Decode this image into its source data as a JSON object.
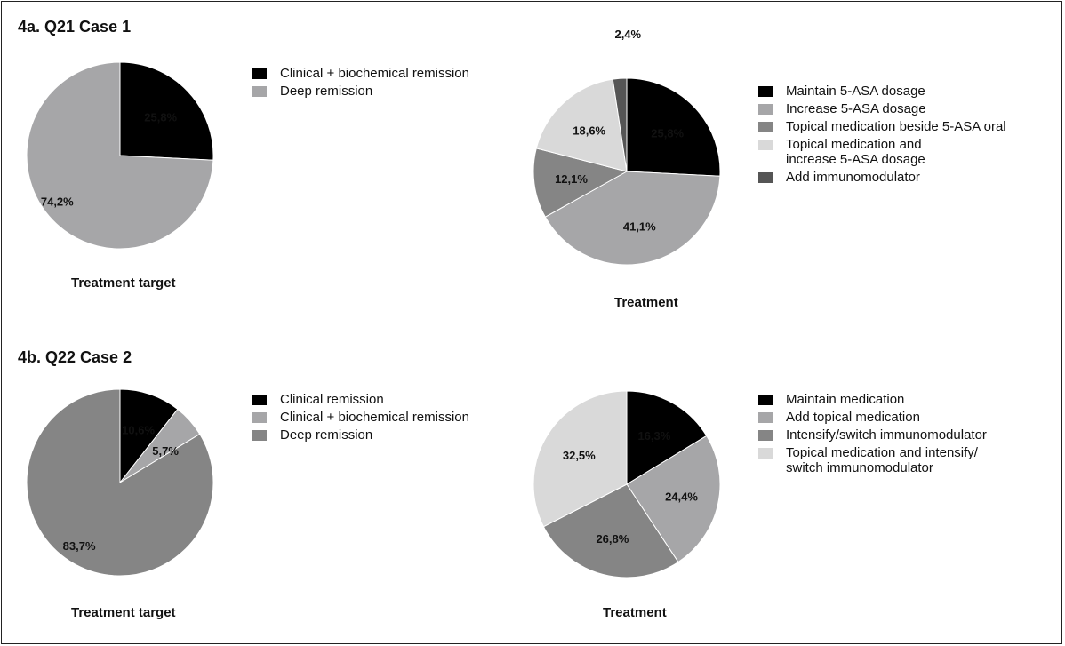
{
  "sections": [
    {
      "title": "4a. Q21 Case 1"
    },
    {
      "title": "4b. Q22 Case 2"
    }
  ],
  "chart_data": [
    {
      "type": "pie",
      "caption": "Treatment target",
      "start_angle_deg": 0,
      "series": [
        {
          "name": "Clinical + biochemical remission",
          "value": 25.8,
          "label": "25,8%",
          "color": "#000000"
        },
        {
          "name": "Deep remission",
          "value": 74.2,
          "label": "74,2%",
          "color": "#a6a6a8"
        }
      ]
    },
    {
      "type": "pie",
      "caption": "Treatment",
      "start_angle_deg": 0,
      "series": [
        {
          "name": "Maintain 5-ASA dosage",
          "value": 25.8,
          "label": "25,8%",
          "color": "#000000"
        },
        {
          "name": "Increase 5-ASA dosage",
          "value": 41.1,
          "label": "41,1%",
          "color": "#a6a6a8"
        },
        {
          "name": "Topical medication beside 5-ASA oral",
          "value": 12.1,
          "label": "12,1%",
          "color": "#858585"
        },
        {
          "name": "Topical medication and\nincrease 5-ASA dosage",
          "value": 18.6,
          "label": "18,6%",
          "color": "#d9d9d9"
        },
        {
          "name": "Add immunomodulator",
          "value": 2.4,
          "label": "2,4%",
          "color": "#555555"
        }
      ]
    },
    {
      "type": "pie",
      "caption": "Treatment target",
      "start_angle_deg": 0,
      "series": [
        {
          "name": "Clinical remission",
          "value": 10.6,
          "label": "10,6%",
          "color": "#000000"
        },
        {
          "name": "Clinical + biochemical remission",
          "value": 5.7,
          "label": "5,7%",
          "color": "#a6a6a8"
        },
        {
          "name": "Deep remission",
          "value": 83.7,
          "label": "83,7%",
          "color": "#858585"
        }
      ]
    },
    {
      "type": "pie",
      "caption": "Treatment",
      "start_angle_deg": 0,
      "series": [
        {
          "name": "Maintain medication",
          "value": 16.3,
          "label": "16,3%",
          "color": "#000000"
        },
        {
          "name": "Add topical medication",
          "value": 24.4,
          "label": "24,4%",
          "color": "#a6a6a8"
        },
        {
          "name": "Intensify/switch immunomodulator",
          "value": 26.8,
          "label": "26,8%",
          "color": "#858585"
        },
        {
          "name": "Topical medication and intensify/\nswitch immunomodulator",
          "value": 32.5,
          "label": "32,5%",
          "color": "#d9d9d9"
        }
      ]
    }
  ]
}
